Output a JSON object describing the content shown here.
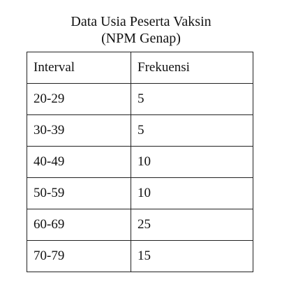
{
  "title": {
    "line1": "Data Usia Peserta Vaksin",
    "line2": "(NPM Genap)"
  },
  "table": {
    "headers": [
      "Interval",
      "Frekuensi"
    ],
    "rows": [
      {
        "interval": "20-29",
        "frequency": "5"
      },
      {
        "interval": "30-39",
        "frequency": "5"
      },
      {
        "interval": "40-49",
        "frequency": "10"
      },
      {
        "interval": "50-59",
        "frequency": "10"
      },
      {
        "interval": "60-69",
        "frequency": "25"
      },
      {
        "interval": "70-79",
        "frequency": "15"
      }
    ]
  }
}
